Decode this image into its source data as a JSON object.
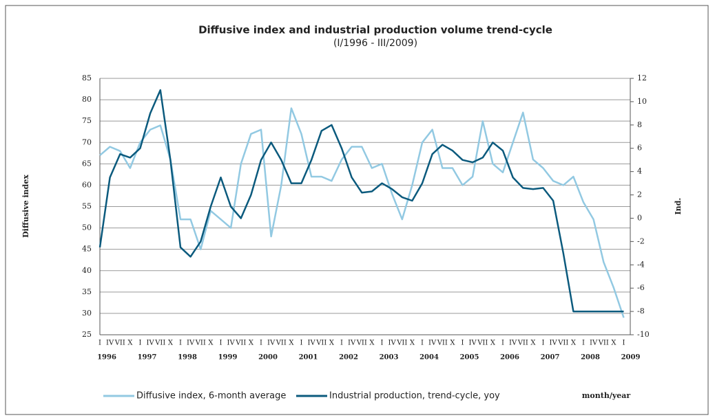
{
  "chart_data": {
    "type": "line",
    "title": "Diffusive index and industrial production volume trend-cycle",
    "subtitle": "(I/1996 - III/2009)",
    "y_label": "Diffusive index",
    "y2_label": "Ind.",
    "x_label": "month/year",
    "categories": [
      "I",
      "IV",
      "VII",
      "X",
      "I",
      "IV",
      "VII",
      "X",
      "I",
      "IV",
      "VII",
      "X",
      "I",
      "IV",
      "VII",
      "X",
      "I",
      "IV",
      "VII",
      "X",
      "I",
      "IV",
      "VII",
      "X",
      "I",
      "IV",
      "VII",
      "X",
      "I",
      "IV",
      "VII",
      "X",
      "I",
      "IV",
      "VII",
      "X",
      "I",
      "IV",
      "VII",
      "X",
      "I",
      "IV",
      "VII",
      "X",
      "I",
      "IV",
      "VII",
      "X",
      "I",
      "IV",
      "VII",
      "X",
      "I"
    ],
    "years": [
      "1996",
      "1997",
      "1998",
      "1999",
      "2000",
      "2001",
      "2002",
      "2003",
      "2004",
      "2005",
      "2006",
      "2007",
      "2008",
      "2009"
    ],
    "series": [
      {
        "name": "Diffusive index, 6-month average",
        "color": "#92c9e2",
        "axis": "y",
        "values": [
          67,
          69,
          68,
          64,
          70,
          73,
          74,
          66,
          52,
          52,
          45,
          54,
          52,
          50,
          65,
          72,
          73,
          48,
          60,
          78,
          72,
          62,
          62,
          61,
          66,
          69,
          69,
          64,
          65,
          58,
          52,
          60,
          70,
          73,
          64,
          64,
          60,
          62,
          75,
          65,
          63,
          70,
          77,
          66,
          64,
          61,
          60,
          62,
          56,
          52,
          42,
          36,
          29
        ]
      },
      {
        "name": "Industrial production, trend-cycle, yoy",
        "color": "#0b5a7d",
        "axis": "y2",
        "values": [
          -2.5,
          3.5,
          5.5,
          5.2,
          6,
          9,
          11,
          5,
          -2.5,
          -3.3,
          -2,
          1,
          3.5,
          1,
          0,
          2,
          5,
          6.5,
          5,
          3,
          3,
          5,
          7.5,
          8,
          6,
          3.5,
          2.2,
          2.3,
          3,
          2.5,
          1.8,
          1.5,
          3,
          5.5,
          6.3,
          5.8,
          5,
          4.8,
          5.2,
          6.5,
          5.8,
          3.5,
          2.6,
          2.5,
          2.6,
          1.5,
          -3,
          -8,
          -8,
          -8,
          -8,
          -8,
          -8
        ]
      }
    ],
    "ylim": [
      25,
      85
    ],
    "yticks": [
      25,
      30,
      35,
      40,
      45,
      50,
      55,
      60,
      65,
      70,
      75,
      80,
      85
    ],
    "y2lim": [
      -10,
      12
    ],
    "y2ticks": [
      -10,
      -8,
      -6,
      -4,
      -2,
      0,
      2,
      4,
      6,
      8,
      10,
      12
    ],
    "grid": true
  }
}
